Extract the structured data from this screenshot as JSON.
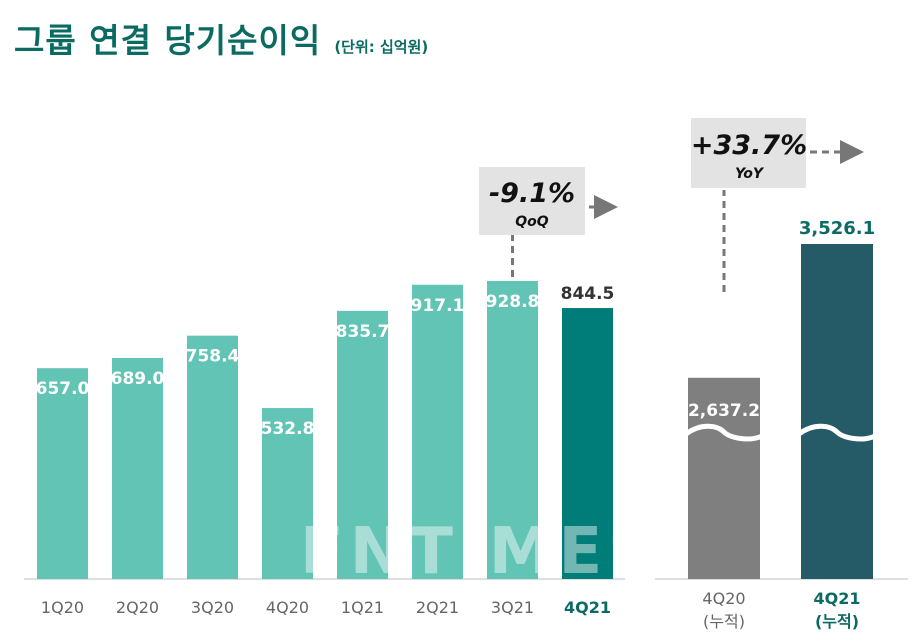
{
  "header": {
    "title": "그룹 연결 당기순이익",
    "unit": "(단위: 십억원)"
  },
  "watermark": "FNTIMES",
  "colors": {
    "title": "#0b6b63",
    "bar_prior": "#62c4b5",
    "bar_current": "#007d78",
    "bar_cum_prior": "#7f7f7f",
    "bar_cum_current": "#245b66",
    "label_current": "#0b6b63",
    "callout_bg": "#e3e3e3",
    "dash": "#777777",
    "axis_label": "#666666"
  },
  "chart_data": [
    {
      "type": "bar",
      "categories": [
        "1Q20",
        "2Q20",
        "3Q20",
        "4Q20",
        "1Q21",
        "2Q21",
        "3Q21",
        "4Q21"
      ],
      "values": [
        657.0,
        689.0,
        758.4,
        532.8,
        835.7,
        917.1,
        928.8,
        844.5
      ],
      "value_labels": [
        "657.0",
        "689.0",
        "758.4",
        "532.8",
        "835.7",
        "917.1",
        "928.8",
        "844.5"
      ],
      "highlight_index": 7,
      "ylim": [
        0,
        1000
      ],
      "annotation": {
        "value": "-9.1%",
        "sub": "QoQ"
      }
    },
    {
      "type": "bar",
      "categories": [
        "4Q20\n(누적)",
        "4Q21\n(누적)"
      ],
      "category_lines": [
        [
          "4Q20",
          "(누적)"
        ],
        [
          "4Q21",
          "(누적)"
        ]
      ],
      "values": [
        2637.2,
        3526.1
      ],
      "value_labels": [
        "2,637.2",
        "3,526.1"
      ],
      "highlight_index": 1,
      "axis_break": true,
      "annotation": {
        "value": "+33.7%",
        "sub": "YoY"
      }
    }
  ]
}
